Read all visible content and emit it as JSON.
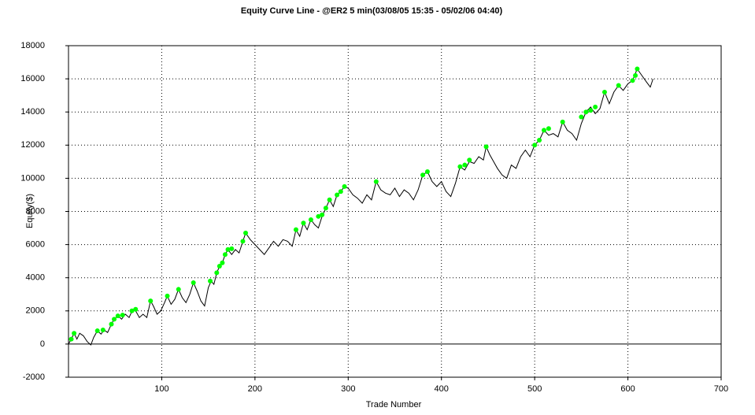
{
  "chart_data": {
    "type": "line",
    "title": "Equity Curve Line - @ER2 5 min(03/08/05 15:35 - 05/02/06 04:40)",
    "x_label": "Trade Number",
    "y_label": "Equity($)",
    "xlim": [
      0,
      700
    ],
    "xticks": [
      100,
      200,
      300,
      400,
      500,
      600,
      700
    ],
    "ylim": [
      -2000,
      18000
    ],
    "yticks": [
      -2000,
      0,
      2000,
      4000,
      6000,
      8000,
      10000,
      12000,
      14000,
      16000,
      18000
    ],
    "grid": true,
    "series": [
      {
        "color": "#000000",
        "style": "line",
        "x": [
          0,
          3,
          6,
          9,
          12,
          16,
          20,
          24,
          27,
          31,
          35,
          38,
          42,
          46,
          49,
          53,
          57,
          61,
          65,
          69,
          72,
          76,
          80,
          84,
          88,
          91,
          95,
          99,
          103,
          106,
          110,
          114,
          118,
          122,
          126,
          130,
          134,
          138,
          142,
          146,
          150,
          153,
          156,
          159,
          162,
          165,
          168,
          171,
          175,
          179,
          183,
          187,
          190,
          195,
          200,
          205,
          210,
          215,
          220,
          225,
          230,
          235,
          240,
          244,
          248,
          252,
          256,
          260,
          264,
          268,
          272,
          276,
          280,
          284,
          288,
          292,
          296,
          300,
          305,
          310,
          315,
          320,
          325,
          330,
          335,
          340,
          345,
          350,
          355,
          360,
          365,
          370,
          375,
          380,
          385,
          390,
          395,
          400,
          405,
          410,
          415,
          420,
          425,
          430,
          435,
          440,
          445,
          448,
          452,
          456,
          460,
          465,
          470,
          475,
          480,
          485,
          490,
          495,
          500,
          505,
          510,
          515,
          520,
          525,
          530,
          535,
          540,
          545,
          550,
          555,
          560,
          565,
          570,
          575,
          580,
          585,
          590,
          595,
          600,
          605,
          610,
          615,
          620,
          624,
          627
        ],
        "values": [
          0,
          300,
          650,
          300,
          650,
          500,
          150,
          -50,
          400,
          800,
          600,
          850,
          700,
          1200,
          1500,
          1700,
          1500,
          1800,
          1600,
          2100,
          2000,
          1600,
          1800,
          1600,
          2600,
          2300,
          1800,
          2000,
          2500,
          2900,
          2400,
          2700,
          3300,
          2800,
          2500,
          3000,
          3700,
          3200,
          2600,
          2300,
          3400,
          3800,
          3600,
          4300,
          4700,
          4900,
          5400,
          5700,
          5400,
          5700,
          5500,
          6200,
          6700,
          6300,
          6000,
          5700,
          5400,
          5800,
          6200,
          5900,
          6300,
          6200,
          5900,
          6900,
          6500,
          7300,
          6900,
          7500,
          7200,
          7000,
          7700,
          8200,
          8700,
          8300,
          9000,
          9200,
          9500,
          9400,
          9000,
          8800,
          8500,
          9000,
          8700,
          9800,
          9300,
          9100,
          9000,
          9400,
          8900,
          9300,
          9100,
          8700,
          9300,
          10200,
          10400,
          9800,
          9500,
          9800,
          9200,
          8900,
          9700,
          10700,
          10500,
          11000,
          10900,
          11300,
          11100,
          11900,
          11400,
          11000,
          10600,
          10200,
          10000,
          10800,
          10600,
          11300,
          11700,
          11300,
          12000,
          12300,
          12900,
          12600,
          12700,
          12500,
          13400,
          12900,
          12700,
          12300,
          13300,
          14000,
          14300,
          13900,
          14200,
          15200,
          14500,
          15200,
          15600,
          15300,
          15700,
          15900,
          16600,
          16200,
          15800,
          15500,
          16000
        ]
      },
      {
        "color": "#00ff00",
        "style": "markers",
        "x": [
          3,
          6,
          31,
          37,
          46,
          49,
          53,
          58,
          68,
          72,
          88,
          106,
          118,
          134,
          152,
          159,
          162,
          165,
          168,
          171,
          175,
          187,
          190,
          244,
          252,
          260,
          268,
          272,
          276,
          280,
          288,
          292,
          296,
          330,
          380,
          385,
          420,
          425,
          430,
          448,
          500,
          505,
          510,
          515,
          530,
          550,
          555,
          560,
          565,
          575,
          590,
          605,
          608,
          610
        ],
        "values": [
          300,
          650,
          800,
          850,
          1200,
          1500,
          1700,
          1750,
          2000,
          2100,
          2600,
          2900,
          3300,
          3700,
          3800,
          4300,
          4700,
          4900,
          5400,
          5700,
          5750,
          6200,
          6700,
          6900,
          7300,
          7500,
          7700,
          7800,
          8200,
          8700,
          9000,
          9200,
          9500,
          9800,
          10200,
          10400,
          10700,
          10800,
          11100,
          11900,
          12000,
          12300,
          12900,
          13000,
          13400,
          13700,
          14000,
          14100,
          14300,
          15200,
          15600,
          15900,
          16200,
          16600
        ]
      }
    ]
  }
}
